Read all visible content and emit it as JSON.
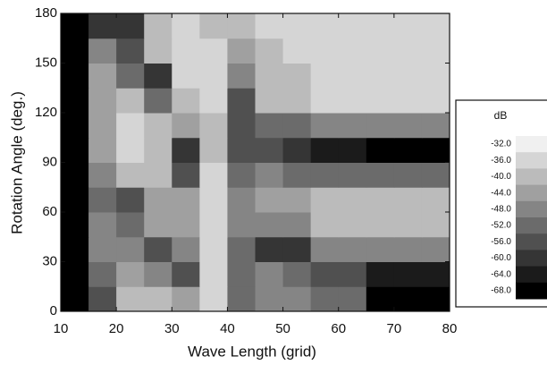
{
  "chart_data": {
    "type": "heatmap",
    "xlabel": "Wave Length (grid)",
    "ylabel": "Rotation Angle (deg.)",
    "xbins": [
      10,
      15,
      20,
      25,
      30,
      35,
      40,
      45,
      50,
      55,
      60,
      65,
      70,
      75,
      80
    ],
    "ybins": [
      0,
      15,
      30,
      45,
      60,
      75,
      90,
      105,
      120,
      135,
      150,
      165,
      180
    ],
    "values": [
      [
        -68,
        -56,
        -40,
        -40,
        -44,
        -36,
        -52,
        -48,
        -48,
        -52,
        -52,
        -68,
        -68,
        -68
      ],
      [
        -68,
        -52,
        -44,
        -48,
        -56,
        -36,
        -52,
        -48,
        -52,
        -56,
        -56,
        -64,
        -64,
        -64
      ],
      [
        -68,
        -48,
        -48,
        -56,
        -48,
        -36,
        -52,
        -60,
        -60,
        -48,
        -48,
        -48,
        -48,
        -48
      ],
      [
        -68,
        -48,
        -52,
        -44,
        -44,
        -36,
        -48,
        -48,
        -48,
        -40,
        -40,
        -40,
        -40,
        -40
      ],
      [
        -68,
        -52,
        -56,
        -44,
        -44,
        -36,
        -48,
        -44,
        -44,
        -40,
        -40,
        -40,
        -40,
        -40
      ],
      [
        -68,
        -48,
        -40,
        -40,
        -56,
        -36,
        -52,
        -48,
        -52,
        -52,
        -52,
        -52,
        -52,
        -52
      ],
      [
        -68,
        -44,
        -36,
        -40,
        -60,
        -40,
        -56,
        -56,
        -60,
        -64,
        -64,
        -68,
        -68,
        -68
      ],
      [
        -68,
        -44,
        -36,
        -40,
        -44,
        -40,
        -56,
        -52,
        -52,
        -48,
        -48,
        -48,
        -48,
        -48
      ],
      [
        -68,
        -44,
        -40,
        -52,
        -40,
        -36,
        -56,
        -40,
        -40,
        -36,
        -36,
        -36,
        -36,
        -36
      ],
      [
        -68,
        -44,
        -52,
        -60,
        -36,
        -36,
        -48,
        -40,
        -40,
        -36,
        -36,
        -36,
        -36,
        -36
      ],
      [
        -68,
        -48,
        -56,
        -40,
        -36,
        -36,
        -44,
        -40,
        -36,
        -36,
        -36,
        -36,
        -36,
        -36
      ],
      [
        -68,
        -60,
        -60,
        -40,
        -36,
        -40,
        -40,
        -36,
        -36,
        -36,
        -36,
        -36,
        -36,
        -36
      ]
    ],
    "xlim": [
      10,
      80
    ],
    "ylim": [
      0,
      180
    ],
    "xticks": [
      10,
      20,
      30,
      40,
      50,
      60,
      70,
      80
    ],
    "yticks": [
      0,
      30,
      60,
      90,
      120,
      150,
      180
    ],
    "colorbar_title": "dB",
    "zlim": [
      -68,
      -32
    ],
    "colorscale": [
      "#000000",
      "#f0f0f0"
    ],
    "zticks": [
      {
        "value": -32,
        "label": "-32.0"
      },
      {
        "value": -36,
        "label": "-36.0"
      },
      {
        "value": -40,
        "label": "-40.0"
      },
      {
        "value": -44,
        "label": "-44.0"
      },
      {
        "value": -48,
        "label": "-48.0"
      },
      {
        "value": -52,
        "label": "-52.0"
      },
      {
        "value": -56,
        "label": "-56.0"
      },
      {
        "value": -60,
        "label": "-60.0"
      },
      {
        "value": -64,
        "label": "-64.0"
      },
      {
        "value": -68,
        "label": "-68.0"
      }
    ]
  }
}
